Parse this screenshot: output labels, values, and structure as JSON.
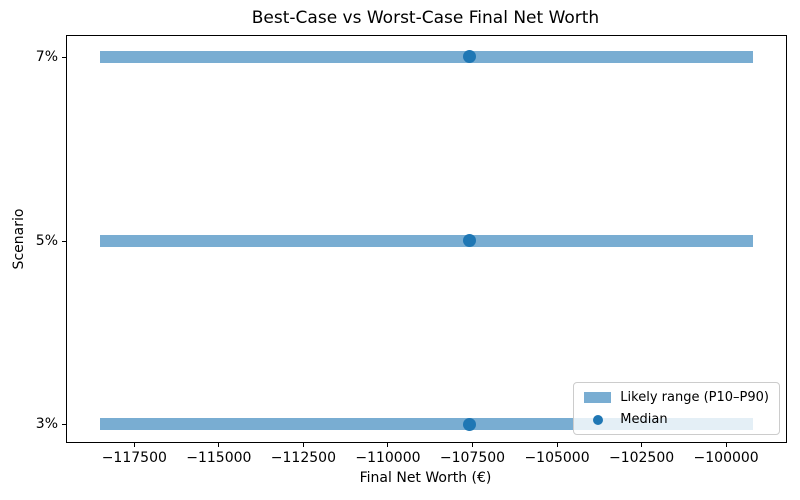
{
  "chart_data": {
    "type": "bar",
    "subtype": "horizontal-range-bars-with-median-dots",
    "title": "Best-Case vs Worst-Case Final Net Worth",
    "xlabel": "Final Net Worth (€)",
    "ylabel": "Scenario",
    "categories": [
      "7%",
      "5%",
      "3%"
    ],
    "rows": [
      {
        "scenario": "7%",
        "p10": -118500,
        "median": -107600,
        "p90": -99200
      },
      {
        "scenario": "5%",
        "p10": -118500,
        "median": -107600,
        "p90": -99200
      },
      {
        "scenario": "3%",
        "p10": -118500,
        "median": -107600,
        "p90": -99200
      }
    ],
    "xlim": [
      -119490,
      -98230
    ],
    "xticks": [
      -117500,
      -115000,
      -112500,
      -110000,
      -107500,
      -105000,
      -102500,
      -100000
    ],
    "xtick_labels": [
      "−117500",
      "−115000",
      "−112500",
      "−110000",
      "−107500",
      "−105000",
      "−102500",
      "−100000"
    ],
    "grid": false,
    "legend": {
      "position": "lower right",
      "entries": [
        {
          "label": "Likely range (P10–P90)",
          "marker": "bar-swatch"
        },
        {
          "label": "Median",
          "marker": "dot"
        }
      ]
    },
    "colors": {
      "range_bar": "rgba(31,119,180,0.6)",
      "median_dot": "#1f77b4",
      "legend_border": "#cccccc",
      "axis": "#000000"
    }
  }
}
